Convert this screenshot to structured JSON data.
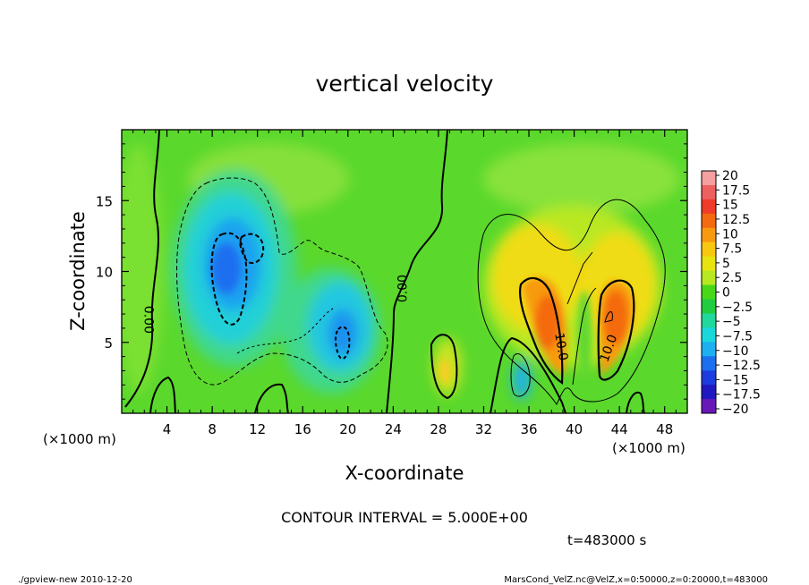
{
  "chart_data": {
    "type": "heatmap",
    "title": "vertical velocity",
    "xlabel": "X-coordinate",
    "ylabel": "Z-coordinate",
    "x_unit_left": "(×1000 m)",
    "x_unit_right": "(×1000 m)",
    "xlim": [
      0,
      50
    ],
    "ylim": [
      0,
      20
    ],
    "xticks": [
      4,
      8,
      12,
      16,
      20,
      24,
      28,
      32,
      36,
      40,
      44,
      48
    ],
    "yticks": [
      5,
      10,
      15
    ],
    "colorbar": {
      "levels": [
        20,
        17.5,
        15,
        12.5,
        10,
        7.5,
        5,
        2.5,
        0,
        -2.5,
        -5,
        -7.5,
        -10,
        -12.5,
        -15,
        -17.5,
        -20
      ],
      "labels": [
        "20",
        "17.5",
        "15",
        "12.5",
        "10",
        "7.5",
        "5",
        "2.5",
        "0",
        "−2.5",
        "−5",
        "−7.5",
        "−10",
        "−12.5",
        "−15",
        "−17.5",
        "−20"
      ],
      "colors": [
        "#f4a0a0",
        "#ee6060",
        "#f03a2a",
        "#f46a10",
        "#f89a10",
        "#f8c810",
        "#e8e410",
        "#b8e820",
        "#48d818",
        "#20cc40",
        "#20d89c",
        "#18d8dc",
        "#1cb0f0",
        "#1c70f0",
        "#1c3ce0",
        "#2018c0",
        "#6818b8"
      ]
    },
    "contour_labels": [
      {
        "text": "0.00",
        "x": 2.4,
        "y": 6.6,
        "angle": 90
      },
      {
        "text": "0.00",
        "x": 24.8,
        "y": 8.8,
        "angle": -90
      },
      {
        "text": "10.0",
        "x": 38.9,
        "y": 4.7,
        "angle": 80
      },
      {
        "text": "10.0",
        "x": 43.0,
        "y": 4.6,
        "angle": -70
      }
    ],
    "contour_interval_text": "CONTOUR INTERVAL = 5.000E+00",
    "time_text": "t=483000 s"
  },
  "footer": {
    "left": "./gpview-new  2010-12-20",
    "right": "MarsCond_VelZ.nc@VelZ,x=0:50000,z=0:20000,t=483000"
  }
}
